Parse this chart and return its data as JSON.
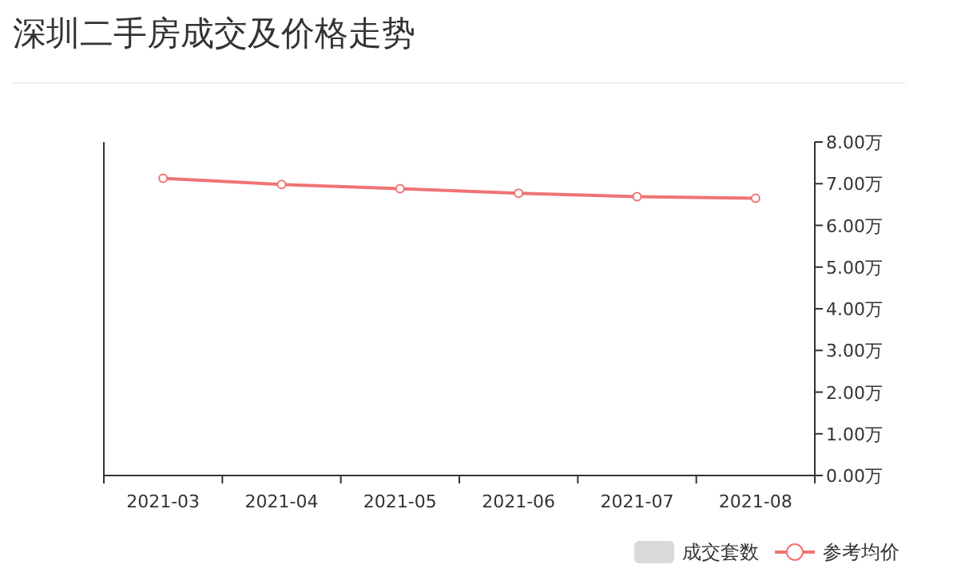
{
  "chart_data": {
    "type": "line",
    "title": "深圳二手房成交及价格走势",
    "categories": [
      "2021-03",
      "2021-04",
      "2021-05",
      "2021-06",
      "2021-07",
      "2021-08"
    ],
    "series": [
      {
        "name": "成交套数",
        "type": "bar",
        "color": "#d9d9d9",
        "values": [
          null,
          null,
          null,
          null,
          null,
          null
        ]
      },
      {
        "name": "参考均价",
        "axis": "y2",
        "color": "#f07373",
        "marker": "circle",
        "values": [
          7.13,
          6.98,
          6.88,
          6.77,
          6.69,
          6.65
        ]
      }
    ],
    "y2lim": [
      0,
      8
    ],
    "y2ticks": [
      {
        "value": 0,
        "label": "0.00万"
      },
      {
        "value": 1,
        "label": "1.00万"
      },
      {
        "value": 2,
        "label": "2.00万"
      },
      {
        "value": 3,
        "label": "3.00万"
      },
      {
        "value": 4,
        "label": "4.00万"
      },
      {
        "value": 5,
        "label": "5.00万"
      },
      {
        "value": 6,
        "label": "6.00万"
      },
      {
        "value": 7,
        "label": "7.00万"
      },
      {
        "value": 8,
        "label": "8.00万"
      }
    ],
    "grid": false,
    "legend": "bottom right"
  }
}
